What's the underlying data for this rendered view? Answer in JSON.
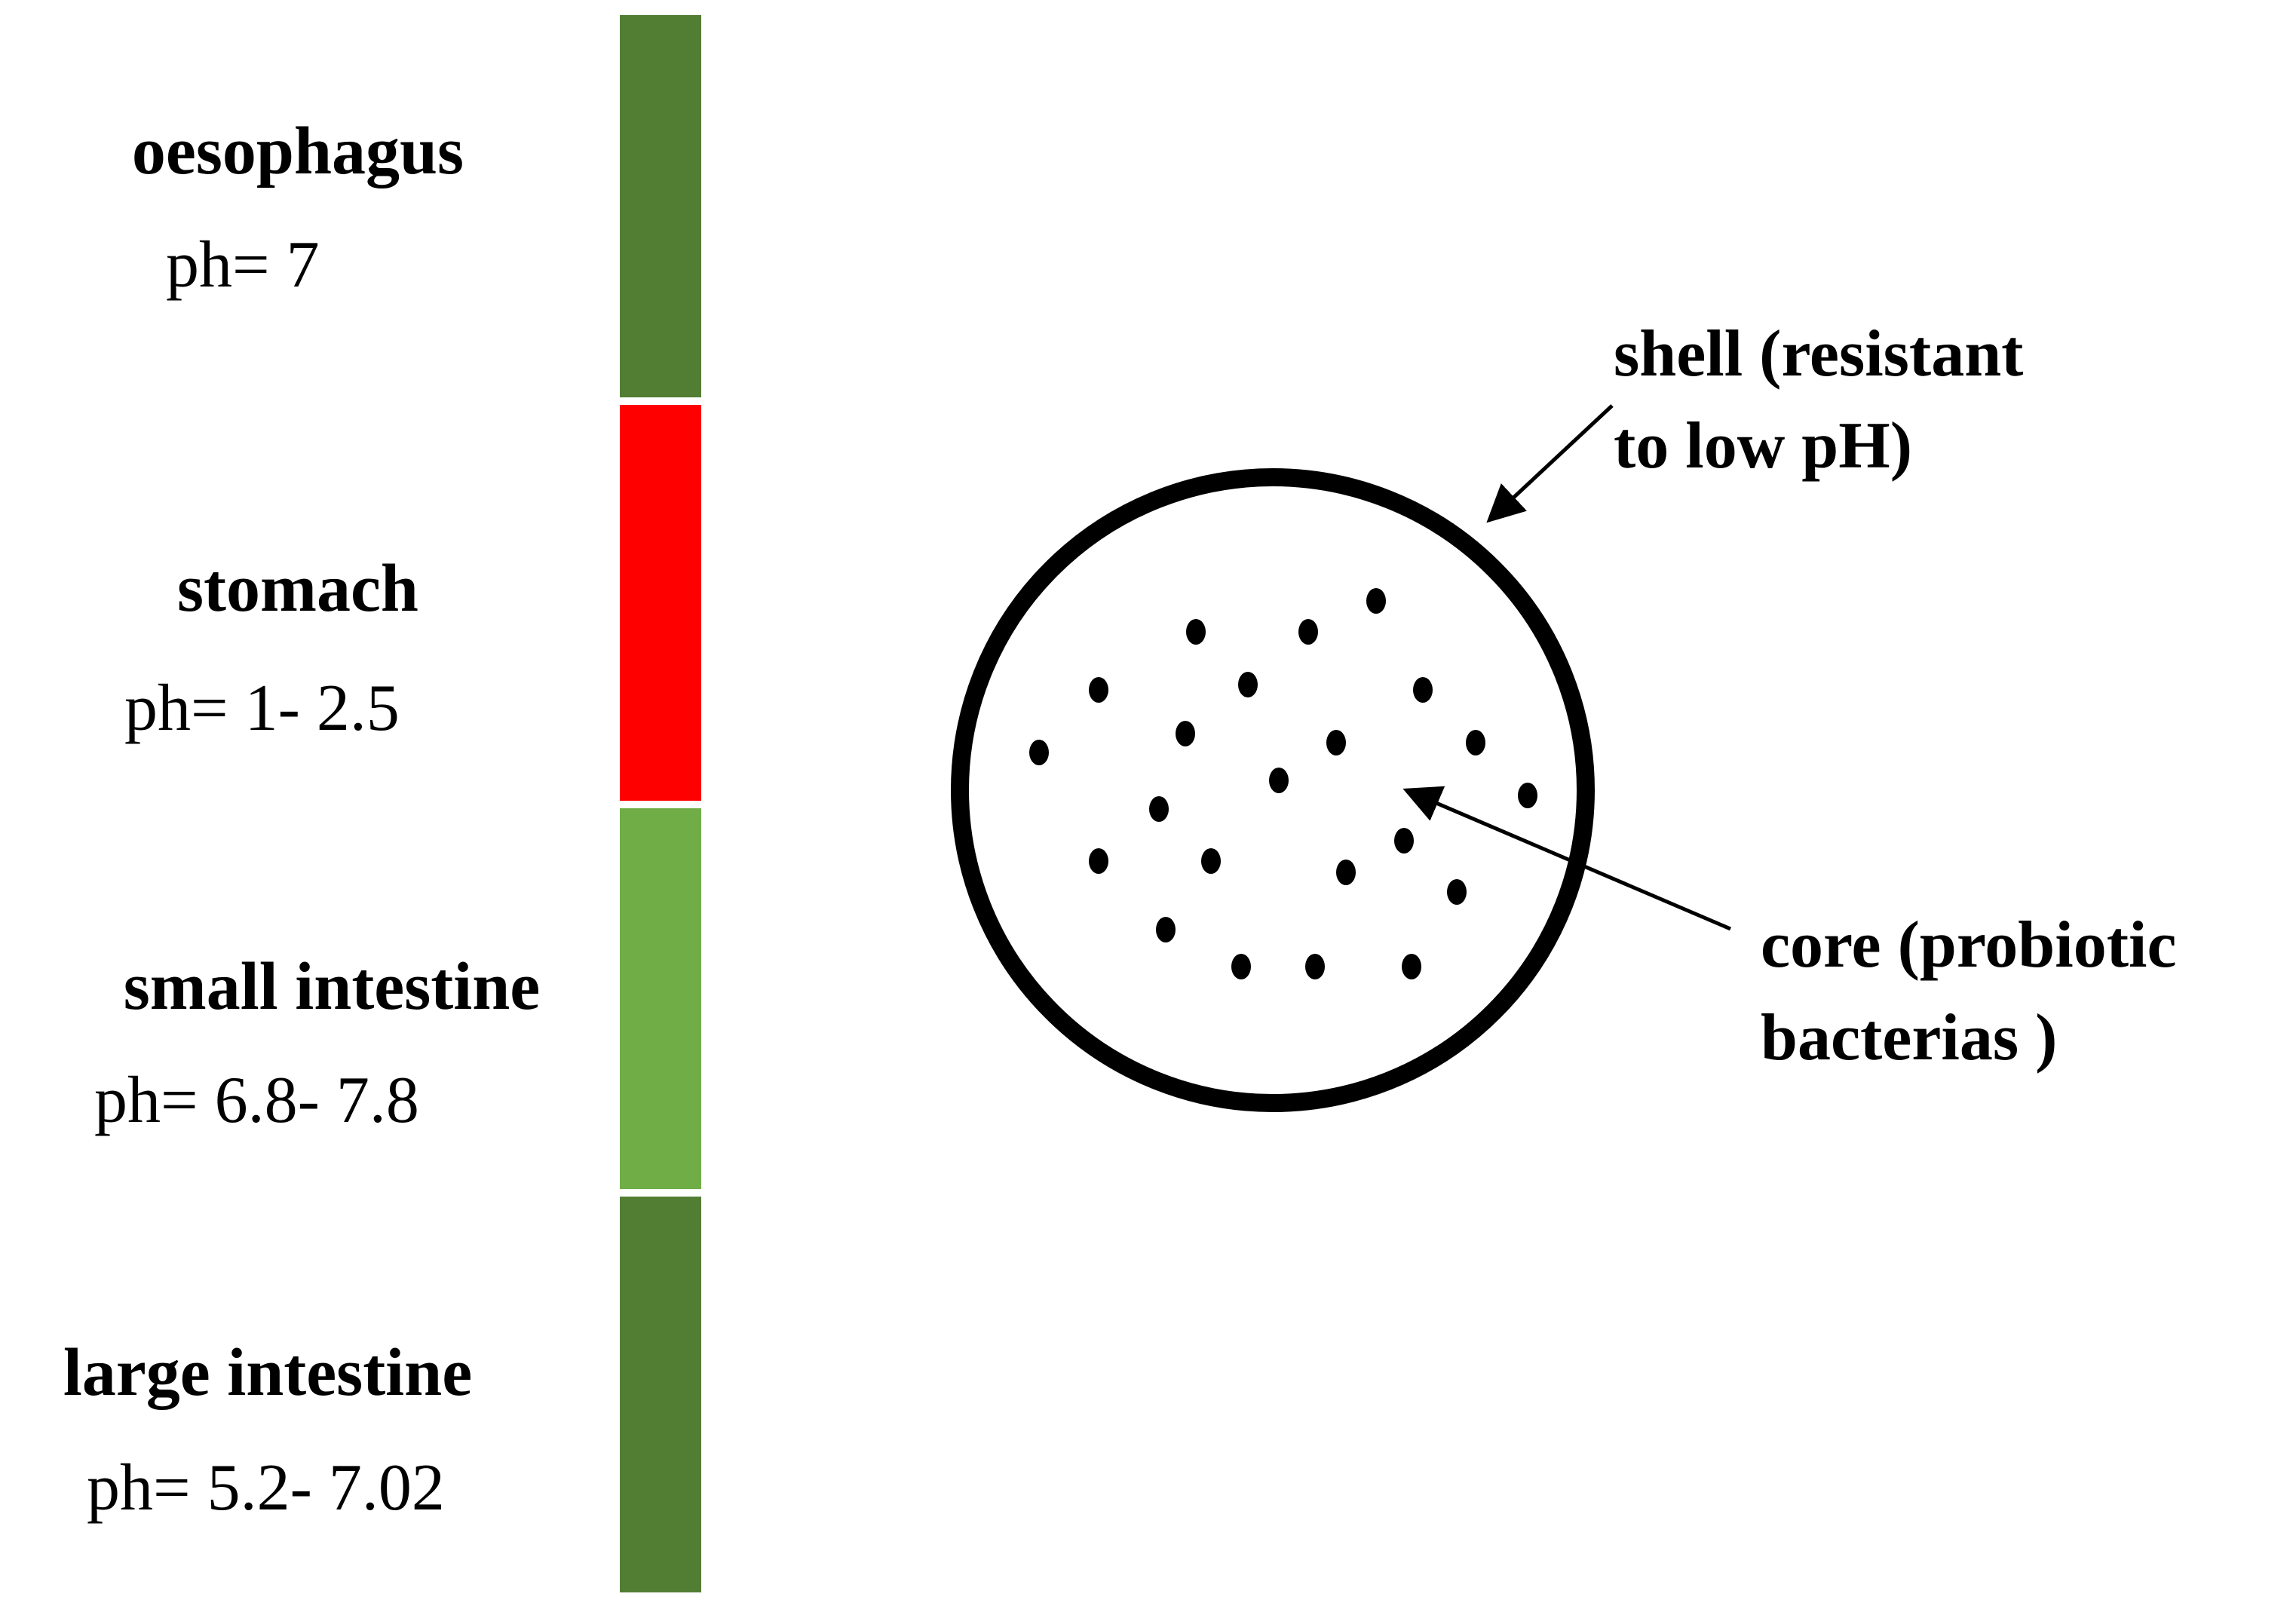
{
  "segments": [
    {
      "name": "oesophagus",
      "ph": "ph= 7",
      "color": "#527E34"
    },
    {
      "name": "stomach",
      "ph": "ph= 1- 2.5",
      "color": "#FF0000"
    },
    {
      "name": "small intestine",
      "ph": "ph= 6.8- 7.8",
      "color": "#70AD47"
    },
    {
      "name": "large intestine",
      "ph": "ph= 5.2- 7.02",
      "color": "#527E34"
    }
  ],
  "capsule": {
    "shell_label": [
      "shell (resistant",
      "to low pH)"
    ],
    "core_label": [
      "core (probiotic",
      "bacterias )"
    ],
    "shell_color": "#000000",
    "dot_color": "#000000"
  }
}
